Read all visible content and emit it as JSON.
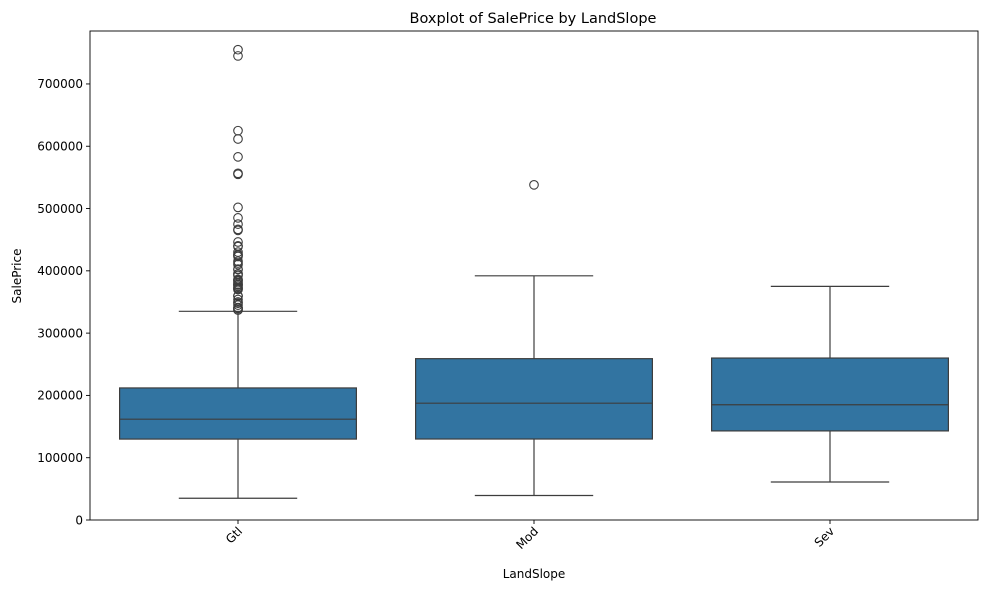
{
  "chart_data": {
    "type": "boxplot",
    "title": "Boxplot of SalePrice by LandSlope",
    "xlabel": "LandSlope",
    "ylabel": "SalePrice",
    "ylim": [
      0,
      785000
    ],
    "yticks": [
      0,
      100000,
      200000,
      300000,
      400000,
      500000,
      600000,
      700000
    ],
    "ytick_labels": [
      "0",
      "100000",
      "200000",
      "300000",
      "400000",
      "500000",
      "600000",
      "700000"
    ],
    "categories": [
      "Gtl",
      "Mod",
      "Sev"
    ],
    "xtick_rotation_deg": 45,
    "box_color": "#3274a1",
    "line_color": "#3d3d3d",
    "grid": false,
    "legend": "none",
    "boxes": [
      {
        "category": "Gtl",
        "whisker_low": 34900,
        "q1": 129900,
        "median": 161875,
        "q3": 212000,
        "whisker_high": 335000,
        "outliers": [
          755000,
          745000,
          625000,
          611657,
          582933,
          556581,
          555000,
          501837,
          485000,
          475000,
          466500,
          465000,
          446261,
          440000,
          438780,
          430000,
          426000,
          424870,
          423000,
          415298,
          412500,
          410000,
          402861,
          402000,
          395192,
          394617,
          392500,
          386250,
          385000,
          383970,
          381000,
          378500,
          377500,
          377426,
          375000,
          372500,
          372402,
          370878,
          369900,
          360000,
          359100,
          354000,
          350000,
          348000,
          345000,
          341000,
          340000,
          339750,
          337500,
          337000
        ]
      },
      {
        "category": "Mod",
        "whisker_low": 39300,
        "q1": 130000,
        "median": 187500,
        "q3": 259000,
        "whisker_high": 392000,
        "outliers": [
          538000
        ]
      },
      {
        "category": "Sev",
        "whisker_low": 61000,
        "q1": 143000,
        "median": 185000,
        "q3": 260000,
        "whisker_high": 375000,
        "outliers": []
      }
    ]
  }
}
